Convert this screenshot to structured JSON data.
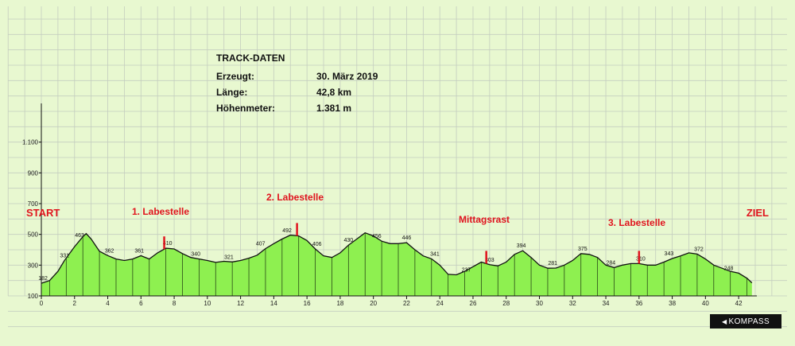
{
  "track_data": {
    "title": "TRACK-DATEN",
    "rows": [
      {
        "label": "Erzeugt:",
        "value": "30. März 2019"
      },
      {
        "label": "Länge:",
        "value": "42,8 km"
      },
      {
        "label": "Höhenmeter:",
        "value": "1.381 m"
      }
    ]
  },
  "logo": {
    "text": "KOMPASS"
  },
  "colors": {
    "background": "#e8f8d0",
    "fill": "#8ef050",
    "grid": "#c4cdbf",
    "marker": "#e0141e",
    "line": "#111111"
  },
  "chart_data": {
    "type": "area",
    "title": "",
    "xlabel": "",
    "ylabel": "",
    "xlim": [
      0,
      43
    ],
    "ylim": [
      100,
      1300
    ],
    "grid": true,
    "x_ticks": [
      0,
      2,
      4,
      6,
      8,
      10,
      12,
      14,
      16,
      18,
      20,
      22,
      24,
      26,
      28,
      30,
      32,
      34,
      36,
      38,
      40,
      42
    ],
    "y_ticks": [
      {
        "value": 100,
        "label": "100"
      },
      {
        "value": 300,
        "label": "300"
      },
      {
        "value": 500,
        "label": "500"
      },
      {
        "value": 700,
        "label": "700"
      },
      {
        "value": 900,
        "label": "900"
      },
      {
        "value": 1100,
        "label": "1.100"
      }
    ],
    "series": [
      {
        "x": [
          0,
          0.5,
          1.0,
          1.4,
          2.0,
          2.5,
          2.7,
          3.0,
          3.5,
          4.0,
          4.5,
          5.0,
          5.5,
          6.0,
          6.5,
          7.0,
          7.5,
          8.0,
          8.5,
          9.0,
          9.5,
          10.0,
          10.5,
          11.0,
          11.5,
          12.0,
          12.5,
          13.0,
          13.5,
          14.0,
          14.5,
          15.0,
          15.5,
          16.0,
          16.5,
          17.0,
          17.5,
          18.0,
          18.5,
          19.0,
          19.5,
          20.0,
          20.5,
          21.0,
          21.5,
          22.0,
          22.5,
          23.0,
          23.5,
          24.0,
          24.5,
          25.0,
          25.5,
          26.0,
          26.5,
          27.0,
          27.5,
          28.0,
          28.5,
          29.0,
          29.5,
          30.0,
          30.5,
          31.0,
          31.5,
          32.0,
          32.5,
          33.0,
          33.5,
          34.0,
          34.5,
          35.0,
          35.5,
          36.0,
          36.5,
          37.0,
          37.5,
          38.0,
          38.5,
          39.0,
          39.5,
          40.0,
          40.5,
          41.0,
          41.5,
          42.0,
          42.5,
          42.8
        ],
        "y": [
          182,
          200,
          260,
          331,
          420,
          485,
          505,
          470,
          390,
          362,
          340,
          330,
          340,
          361,
          340,
          380,
          410,
          405,
          375,
          350,
          340,
          330,
          318,
          325,
          321,
          330,
          345,
          365,
          407,
          440,
          470,
          495,
          490,
          460,
          405,
          360,
          350,
          380,
          430,
          470,
          510,
          490,
          456,
          440,
          440,
          446,
          400,
          360,
          341,
          300,
          240,
          237,
          260,
          290,
          320,
          303,
          295,
          320,
          370,
          394,
          350,
          300,
          280,
          281,
          300,
          330,
          375,
          370,
          350,
          300,
          284,
          300,
          310,
          310,
          300,
          300,
          320,
          343,
          360,
          380,
          372,
          340,
          300,
          280,
          260,
          248,
          215,
          185
        ]
      }
    ],
    "value_labels": [
      {
        "x": 0.1,
        "y": 182,
        "label": "182"
      },
      {
        "x": 1.4,
        "y": 331,
        "label": "331"
      },
      {
        "x": 2.3,
        "y": 463,
        "label": "463"
      },
      {
        "x": 4.1,
        "y": 362,
        "label": "362"
      },
      {
        "x": 5.9,
        "y": 361,
        "label": "361"
      },
      {
        "x": 7.6,
        "y": 410,
        "label": "410"
      },
      {
        "x": 9.3,
        "y": 340,
        "label": "340"
      },
      {
        "x": 11.3,
        "y": 321,
        "label": "321"
      },
      {
        "x": 13.2,
        "y": 407,
        "label": "407"
      },
      {
        "x": 14.8,
        "y": 492,
        "label": "492"
      },
      {
        "x": 16.6,
        "y": 406,
        "label": "406"
      },
      {
        "x": 18.5,
        "y": 430,
        "label": "430"
      },
      {
        "x": 20.2,
        "y": 456,
        "label": "456"
      },
      {
        "x": 22.0,
        "y": 446,
        "label": "446"
      },
      {
        "x": 23.7,
        "y": 341,
        "label": "341"
      },
      {
        "x": 25.6,
        "y": 237,
        "label": "237"
      },
      {
        "x": 27.0,
        "y": 303,
        "label": "303"
      },
      {
        "x": 28.9,
        "y": 394,
        "label": "394"
      },
      {
        "x": 30.8,
        "y": 281,
        "label": "281"
      },
      {
        "x": 32.6,
        "y": 375,
        "label": "375"
      },
      {
        "x": 34.3,
        "y": 284,
        "label": "284"
      },
      {
        "x": 36.1,
        "y": 310,
        "label": "310"
      },
      {
        "x": 37.8,
        "y": 343,
        "label": "343"
      },
      {
        "x": 39.6,
        "y": 372,
        "label": "372"
      },
      {
        "x": 41.4,
        "y": 248,
        "label": "248"
      }
    ],
    "annotations": [
      {
        "label": "START",
        "x": 0,
        "marker": false
      },
      {
        "label": "1. Labestelle",
        "x": 7.4,
        "marker": true
      },
      {
        "label": "2. Labestelle",
        "x": 15.4,
        "marker": true
      },
      {
        "label": "Mittagsrast",
        "x": 26.8,
        "marker": true
      },
      {
        "label": "3. Labestelle",
        "x": 36.0,
        "marker": true
      },
      {
        "label": "ZIEL",
        "x": 42.8,
        "marker": false
      }
    ]
  }
}
